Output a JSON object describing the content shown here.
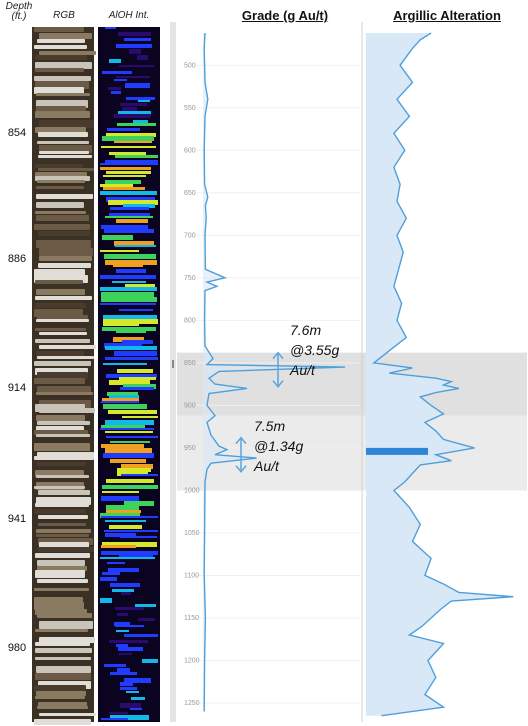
{
  "headers": {
    "depth": "Depth (ft.)",
    "rgb": "RGB",
    "aioh": "AlOH Int.",
    "grade": "Grade (g Au/t)",
    "argillic": "Argillic Alteration"
  },
  "depth_labels": [
    "854",
    "886",
    "914",
    "941",
    "980"
  ],
  "annotations": [
    {
      "interval": "7.6m",
      "grade": "@3.55g",
      "unit": "Au/t"
    },
    {
      "interval": "7.5m",
      "grade": "@1.34g",
      "unit": "Au/t"
    }
  ],
  "colors": {
    "line": "#4f9fdb",
    "fill": "#d8e8f6",
    "highlight": "#e6e6e6",
    "arrow": "#5aa5dd",
    "aioh_palette": [
      "#2a0a6e",
      "#1f3cff",
      "#11b8e8",
      "#3dd35a",
      "#d6e82a",
      "#f0a020"
    ],
    "rgb_palette": [
      "#8a7a62",
      "#c9c4ba",
      "#6b5a46",
      "#e0ddd6",
      "#4a3c2c"
    ]
  },
  "chart_data": {
    "type": "line",
    "y_axis": {
      "ticks": [
        500,
        550,
        600,
        650,
        700,
        750,
        800,
        850,
        900,
        950,
        1000,
        1050,
        1100,
        1150,
        1200,
        1250
      ],
      "ylim": [
        455,
        1270
      ],
      "inverted": true
    },
    "highlight_intervals": [
      [
        838,
        912
      ],
      [
        912,
        1000
      ]
    ],
    "series": [
      {
        "panel": "Grade (g Au/t)",
        "points": [
          [
            462,
            0.05
          ],
          [
            480,
            0.03
          ],
          [
            520,
            0.05
          ],
          [
            540,
            0.12
          ],
          [
            560,
            0.05
          ],
          [
            600,
            0.03
          ],
          [
            640,
            0.04
          ],
          [
            655,
            0.12
          ],
          [
            665,
            0.06
          ],
          [
            680,
            0.08
          ],
          [
            700,
            0.05
          ],
          [
            740,
            0.06
          ],
          [
            750,
            0.55
          ],
          [
            755,
            0.1
          ],
          [
            760,
            0.35
          ],
          [
            765,
            0.05
          ],
          [
            800,
            0.04
          ],
          [
            830,
            0.05
          ],
          [
            845,
            0.25
          ],
          [
            852,
            0.1
          ],
          [
            855,
            3.55
          ],
          [
            860,
            0.4
          ],
          [
            868,
            0.15
          ],
          [
            875,
            0.3
          ],
          [
            880,
            1.1
          ],
          [
            886,
            0.15
          ],
          [
            900,
            0.1
          ],
          [
            912,
            0.3
          ],
          [
            920,
            0.1
          ],
          [
            935,
            0.2
          ],
          [
            948,
            0.4
          ],
          [
            952,
            0.6
          ],
          [
            958,
            0.3
          ],
          [
            962,
            1.34
          ],
          [
            968,
            0.2
          ],
          [
            975,
            0.1
          ],
          [
            990,
            0.05
          ],
          [
            1050,
            0.04
          ],
          [
            1100,
            0.03
          ],
          [
            1150,
            0.06
          ],
          [
            1200,
            0.04
          ],
          [
            1260,
            0.03
          ]
        ]
      },
      {
        "panel": "Argillic Alteration",
        "points": [
          [
            462,
            0.42
          ],
          [
            470,
            0.35
          ],
          [
            480,
            0.3
          ],
          [
            500,
            0.22
          ],
          [
            520,
            0.3
          ],
          [
            540,
            0.2
          ],
          [
            560,
            0.28
          ],
          [
            580,
            0.18
          ],
          [
            600,
            0.25
          ],
          [
            620,
            0.18
          ],
          [
            640,
            0.22
          ],
          [
            660,
            0.2
          ],
          [
            680,
            0.26
          ],
          [
            700,
            0.2
          ],
          [
            720,
            0.24
          ],
          [
            740,
            0.21
          ],
          [
            760,
            0.18
          ],
          [
            780,
            0.23
          ],
          [
            800,
            0.2
          ],
          [
            820,
            0.26
          ],
          [
            840,
            0.12
          ],
          [
            850,
            0.05
          ],
          [
            856,
            0.3
          ],
          [
            862,
            0.15
          ],
          [
            868,
            0.45
          ],
          [
            872,
            0.55
          ],
          [
            876,
            0.5
          ],
          [
            880,
            0.6
          ],
          [
            885,
            0.45
          ],
          [
            890,
            0.35
          ],
          [
            900,
            0.42
          ],
          [
            910,
            0.5
          ],
          [
            920,
            0.38
          ],
          [
            930,
            0.45
          ],
          [
            940,
            0.5
          ],
          [
            950,
            0.7
          ],
          [
            958,
            0.45
          ],
          [
            965,
            0.55
          ],
          [
            970,
            0.35
          ],
          [
            980,
            0.3
          ],
          [
            990,
            0.25
          ],
          [
            1000,
            0.18
          ],
          [
            1020,
            0.28
          ],
          [
            1040,
            0.35
          ],
          [
            1060,
            0.3
          ],
          [
            1080,
            0.42
          ],
          [
            1100,
            0.38
          ],
          [
            1110,
            0.5
          ],
          [
            1120,
            0.6
          ],
          [
            1125,
            0.95
          ],
          [
            1130,
            0.55
          ],
          [
            1140,
            0.48
          ],
          [
            1160,
            0.36
          ],
          [
            1170,
            0.28
          ],
          [
            1180,
            0.5
          ],
          [
            1200,
            0.4
          ],
          [
            1220,
            0.45
          ],
          [
            1240,
            0.38
          ],
          [
            1255,
            0.5
          ],
          [
            1265,
            0.1
          ]
        ]
      }
    ]
  }
}
